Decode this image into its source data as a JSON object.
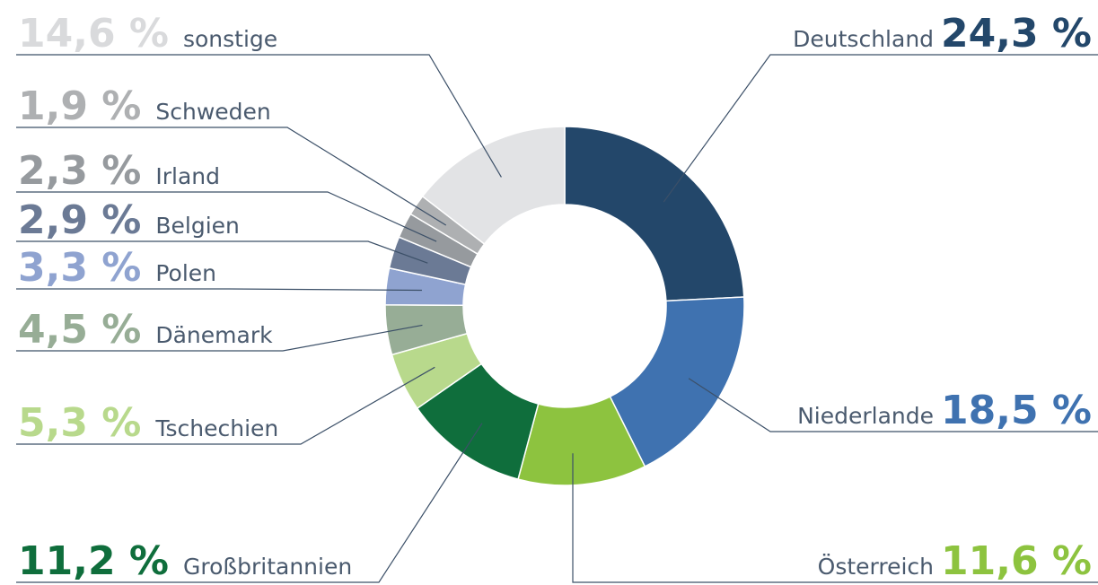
{
  "chart_data": {
    "type": "donut",
    "categories": [
      "Deutschland",
      "Niederlande",
      "Österreich",
      "Großbritannien",
      "Tschechien",
      "Dänemark",
      "Polen",
      "Belgien",
      "Irland",
      "Schweden",
      "sonstige"
    ],
    "values": [
      24.3,
      18.5,
      11.6,
      11.2,
      5.3,
      4.5,
      3.3,
      2.9,
      2.3,
      1.9,
      14.6
    ],
    "value_labels": [
      "24,3 %",
      "18,5 %",
      "11,6 %",
      "11,2 %",
      "5,3 %",
      "4,5 %",
      "3,3 %",
      "2,9 %",
      "2,3 %",
      "1,9 %",
      "14,6 %"
    ],
    "colors": [
      "#23476a",
      "#3f72b0",
      "#8dc33f",
      "#0f6e3c",
      "#b8d98c",
      "#97ad96",
      "#8fa3d0",
      "#6b7a95",
      "#969a9e",
      "#aeb0b2",
      "#e2e3e5"
    ]
  }
}
